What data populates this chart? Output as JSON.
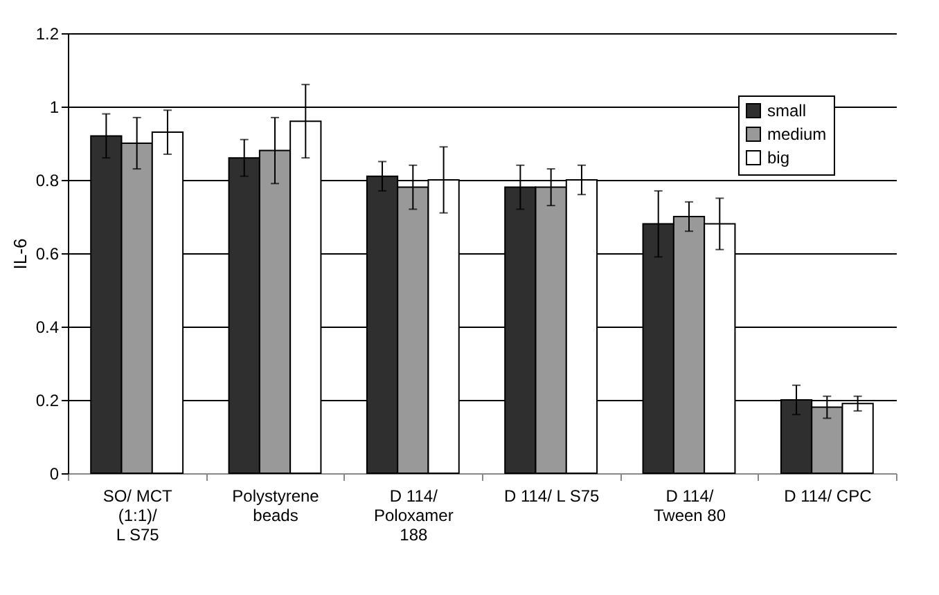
{
  "chart_data": {
    "type": "bar",
    "ylabel": "IL-6",
    "categories": [
      "SO/ MCT\n(1:1)/\nL S75",
      "Polystyrene\nbeads",
      "D 114/\nPoloxamer\n188",
      "D 114/ L S75",
      "D 114/\nTween 80",
      "D 114/ CPC"
    ],
    "series": [
      {
        "name": "small",
        "color": "#2f2f2f",
        "values": [
          0.92,
          0.86,
          0.81,
          0.78,
          0.68,
          0.2
        ],
        "errors": [
          0.06,
          0.05,
          0.04,
          0.06,
          0.09,
          0.04
        ]
      },
      {
        "name": "medium",
        "color": "#999999",
        "values": [
          0.9,
          0.88,
          0.78,
          0.78,
          0.7,
          0.18
        ],
        "errors": [
          0.07,
          0.09,
          0.06,
          0.05,
          0.04,
          0.03
        ]
      },
      {
        "name": "big",
        "color": "#ffffff",
        "values": [
          0.93,
          0.96,
          0.8,
          0.8,
          0.68,
          0.19
        ],
        "errors": [
          0.06,
          0.1,
          0.09,
          0.04,
          0.07,
          0.02
        ]
      }
    ],
    "ylim": [
      0,
      1.2
    ],
    "yticks": [
      0,
      0.2,
      0.4,
      0.6,
      0.8,
      1,
      1.2
    ],
    "grid": "y",
    "legend": "top right"
  }
}
